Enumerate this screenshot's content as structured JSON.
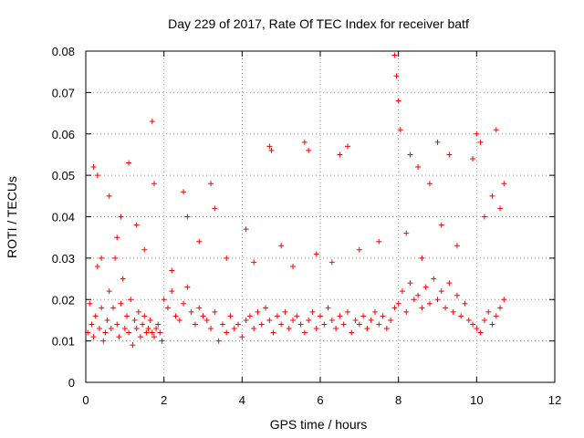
{
  "chart_data": {
    "type": "scatter",
    "title": "Day 229 of 2017, Rate Of TEC Index for receiver batf",
    "xlabel": "GPS time / hours",
    "ylabel": "ROTI / TECUs",
    "xlim": [
      0,
      12
    ],
    "ylim": [
      0,
      0.08
    ],
    "x_ticks": [
      "0",
      "2",
      "4",
      "6",
      "8",
      "10",
      "12"
    ],
    "y_ticks": [
      "0",
      "0.01",
      "0.02",
      "0.03",
      "0.04",
      "0.05",
      "0.06",
      "0.07",
      "0.08"
    ],
    "grid": true,
    "marker": "+",
    "marker_color": "#ff0000",
    "series": [
      {
        "x": [
          0.05,
          0.1,
          0.15,
          0.2,
          0.25,
          0.3,
          0.35,
          0.4,
          0.45,
          0.5,
          0.55,
          0.6,
          0.65,
          0.7,
          0.75,
          0.8,
          0.85,
          0.9,
          0.95,
          1.0,
          1.05,
          1.1,
          1.15,
          1.2,
          1.25,
          1.3,
          1.35,
          1.4,
          1.45,
          1.5,
          1.55,
          1.6,
          1.65,
          1.7,
          1.75,
          1.8,
          1.85,
          1.9,
          1.95,
          2.0,
          2.1,
          2.2,
          2.3,
          2.4,
          2.5,
          2.6,
          2.7,
          2.8,
          2.9,
          3.0,
          3.1,
          3.2,
          3.3,
          3.4,
          3.5,
          3.6,
          3.7,
          3.8,
          3.9,
          4.0,
          4.1,
          4.2,
          4.3,
          4.4,
          4.5,
          4.6,
          4.7,
          4.8,
          4.9,
          5.0,
          5.1,
          5.2,
          5.3,
          5.4,
          5.5,
          5.6,
          5.7,
          5.8,
          5.9,
          6.0,
          6.1,
          6.2,
          6.3,
          6.4,
          6.5,
          6.6,
          6.7,
          6.8,
          6.9,
          7.0,
          7.1,
          7.2,
          7.3,
          7.4,
          7.5,
          7.6,
          7.7,
          7.8,
          7.9,
          8.0,
          8.1,
          8.2,
          8.3,
          8.4,
          8.5,
          8.6,
          8.7,
          8.8,
          8.9,
          9.0,
          9.1,
          9.2,
          9.3,
          9.4,
          9.5,
          9.6,
          9.7,
          9.8,
          9.9,
          10.0,
          10.1,
          10.2,
          10.3,
          10.4,
          10.5,
          10.6,
          10.7,
          0.2,
          0.3,
          0.6,
          0.9,
          1.1,
          1.7,
          1.75,
          2.5,
          2.6,
          3.2,
          3.3,
          4.1,
          4.7,
          4.75,
          5.6,
          5.7,
          6.5,
          6.7,
          7.9,
          7.95,
          8.0,
          8.05,
          8.3,
          8.5,
          8.8,
          9.0,
          9.3,
          9.9,
          10.0,
          10.1,
          10.5,
          10.7,
          0.4,
          0.8,
          1.3,
          1.5,
          2.2,
          2.9,
          3.6,
          4.3,
          5.0,
          5.3,
          5.9,
          6.3,
          7.0,
          7.5,
          8.2,
          8.6,
          9.1,
          9.5,
          10.2,
          10.4,
          10.6
        ],
        "y": [
          0.012,
          0.019,
          0.014,
          0.011,
          0.016,
          0.028,
          0.013,
          0.018,
          0.01,
          0.012,
          0.015,
          0.022,
          0.013,
          0.018,
          0.03,
          0.014,
          0.011,
          0.019,
          0.025,
          0.013,
          0.016,
          0.012,
          0.02,
          0.009,
          0.015,
          0.013,
          0.017,
          0.011,
          0.014,
          0.016,
          0.012,
          0.013,
          0.015,
          0.012,
          0.011,
          0.013,
          0.014,
          0.012,
          0.01,
          0.02,
          0.018,
          0.022,
          0.016,
          0.015,
          0.019,
          0.023,
          0.017,
          0.014,
          0.018,
          0.016,
          0.015,
          0.013,
          0.017,
          0.01,
          0.014,
          0.012,
          0.016,
          0.013,
          0.014,
          0.011,
          0.015,
          0.016,
          0.013,
          0.017,
          0.014,
          0.018,
          0.015,
          0.012,
          0.016,
          0.014,
          0.017,
          0.013,
          0.015,
          0.016,
          0.014,
          0.012,
          0.015,
          0.017,
          0.013,
          0.016,
          0.014,
          0.018,
          0.015,
          0.013,
          0.016,
          0.014,
          0.017,
          0.012,
          0.015,
          0.014,
          0.016,
          0.013,
          0.015,
          0.017,
          0.014,
          0.016,
          0.013,
          0.015,
          0.018,
          0.019,
          0.022,
          0.017,
          0.024,
          0.02,
          0.021,
          0.018,
          0.023,
          0.019,
          0.025,
          0.02,
          0.022,
          0.018,
          0.024,
          0.017,
          0.021,
          0.016,
          0.019,
          0.015,
          0.014,
          0.013,
          0.012,
          0.015,
          0.017,
          0.014,
          0.016,
          0.018,
          0.02,
          0.052,
          0.05,
          0.045,
          0.04,
          0.053,
          0.063,
          0.048,
          0.046,
          0.04,
          0.048,
          0.042,
          0.037,
          0.057,
          0.056,
          0.058,
          0.056,
          0.055,
          0.057,
          0.079,
          0.074,
          0.068,
          0.061,
          0.055,
          0.052,
          0.048,
          0.058,
          0.055,
          0.054,
          0.06,
          0.058,
          0.061,
          0.048,
          0.03,
          0.035,
          0.038,
          0.032,
          0.027,
          0.034,
          0.03,
          0.029,
          0.033,
          0.028,
          0.031,
          0.029,
          0.032,
          0.034,
          0.036,
          0.03,
          0.038,
          0.033,
          0.04,
          0.045,
          0.042
        ]
      }
    ]
  }
}
